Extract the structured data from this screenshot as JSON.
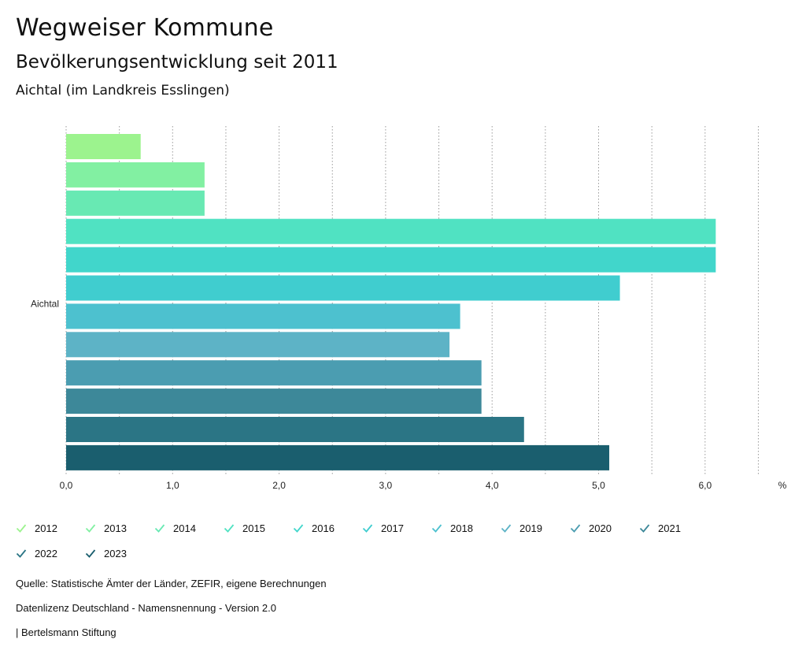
{
  "header": {
    "title": "Wegweiser Kommune",
    "subtitle": "Bevölkerungsentwicklung seit 2011",
    "region": "Aichtal (im Landkreis Esslingen)"
  },
  "chart_data": {
    "type": "bar",
    "orientation": "horizontal",
    "categories": [
      "Aichtal"
    ],
    "series": [
      {
        "name": "2012",
        "values": [
          0.7
        ],
        "color": "#9cf38e"
      },
      {
        "name": "2013",
        "values": [
          1.3
        ],
        "color": "#82f0a2"
      },
      {
        "name": "2014",
        "values": [
          1.3
        ],
        "color": "#68e9b3"
      },
      {
        "name": "2015",
        "values": [
          6.1
        ],
        "color": "#50e2c2"
      },
      {
        "name": "2016",
        "values": [
          6.1
        ],
        "color": "#41d6cb"
      },
      {
        "name": "2017",
        "values": [
          5.2
        ],
        "color": "#40cdcf"
      },
      {
        "name": "2018",
        "values": [
          3.7
        ],
        "color": "#4dc1cf"
      },
      {
        "name": "2019",
        "values": [
          3.6
        ],
        "color": "#5db3c6"
      },
      {
        "name": "2020",
        "values": [
          3.9
        ],
        "color": "#4b9db1"
      },
      {
        "name": "2021",
        "values": [
          3.9
        ],
        "color": "#3d8899"
      },
      {
        "name": "2022",
        "values": [
          4.3
        ],
        "color": "#2b7585"
      },
      {
        "name": "2023",
        "values": [
          5.1
        ],
        "color": "#1a5e6e"
      }
    ],
    "xlim": [
      0,
      6.5
    ],
    "ticks": [
      0,
      1,
      2,
      3,
      4,
      5,
      6
    ],
    "tick_labels": [
      "0,0",
      "1,0",
      "2,0",
      "3,0",
      "4,0",
      "5,0",
      "6,0"
    ],
    "unit": "%",
    "grid": true
  },
  "footer": {
    "source": "Quelle: Statistische Ämter der Länder, ZEFIR, eigene Berechnungen",
    "license": "Datenlizenz Deutschland - Namensnennung - Version 2.0",
    "publisher": "| Bertelsmann Stiftung"
  }
}
